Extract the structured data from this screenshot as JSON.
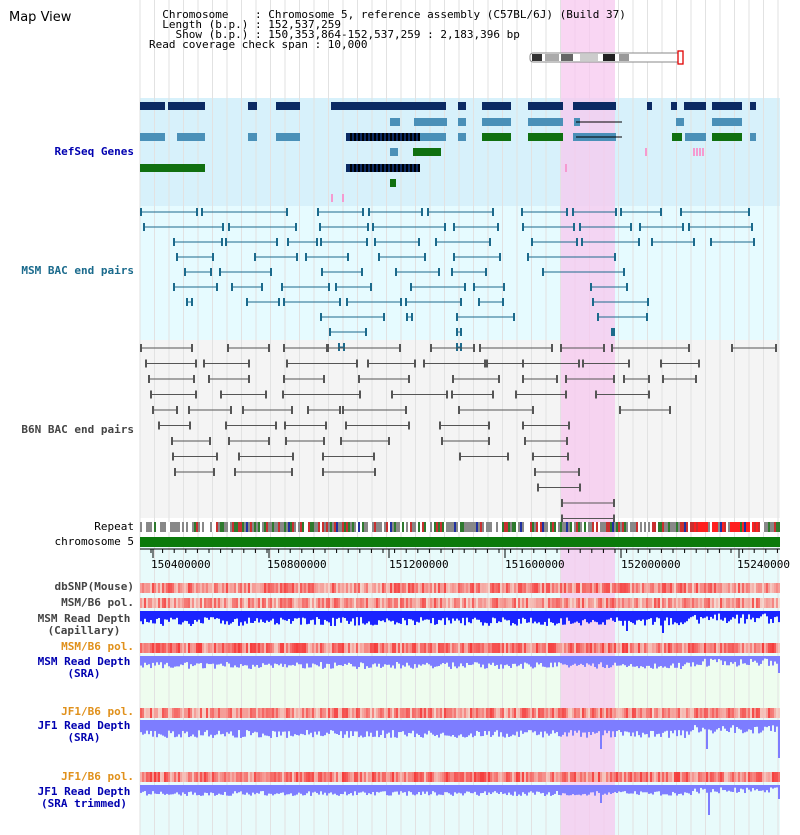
{
  "page": {
    "title": "Map View"
  },
  "info": {
    "chromosome": "  Chromosome    : Chromosome 5, reference assembly (C57BL/6J) (Build 37)",
    "length": "  Length (b.p.) : 152,537,259",
    "show": "    Show (b.p.) : 150,353,864-152,537,259 : 2,183,396 bp",
    "coverage": "Read coverage check span : 10,000"
  },
  "tracks": {
    "refseq": "RefSeq Genes",
    "msm_bac": "MSM BAC end pairs",
    "b6n_bac": "B6N BAC end pairs",
    "repeat": "Repeat",
    "chromosome": "chromosome 5",
    "dbsnp": "dbSNP(Mouse)",
    "msm_pol": "MSM/B6 pol.",
    "msm_depth_cap_1": "MSM Read Depth",
    "msm_depth_cap_2": "(Capillary)",
    "msm_pol2": "MSM/B6 pol.",
    "msm_depth_sra_1": "MSM Read Depth",
    "msm_depth_sra_2": "(SRA)",
    "jf1_pol": "JF1/B6 pol.",
    "jf1_depth_1": "JF1 Read Depth",
    "jf1_depth_2": "(SRA)",
    "jf1_pol2": "JF1/B6 pol.",
    "jf1_trim_1": "JF1 Read Depth",
    "jf1_trim_2": "(SRA trimmed)"
  },
  "axis": {
    "ticks": [
      "150400000",
      "150800000",
      "151200000",
      "151600000",
      "152000000",
      "15240000"
    ]
  },
  "colors": {
    "refseq_dark": "#0b2a63",
    "refseq_mid": "#4a90b8",
    "refseq_green": "#107010",
    "msm_pair": "#1c6a8c",
    "b6n_pair": "#555555",
    "highlight": "#f7c8ef",
    "label_dark": "#333333",
    "label_msm": "#1a4e80",
    "label_sra": "#0000b0",
    "label_orange": "#e0901a",
    "depth_blue": "#1a24ff",
    "depth_light": "#7d7dff",
    "band_refseq": "#d7f1fb",
    "band_msm": "#e6fbff",
    "band_data": "#e8fbfb"
  }
}
